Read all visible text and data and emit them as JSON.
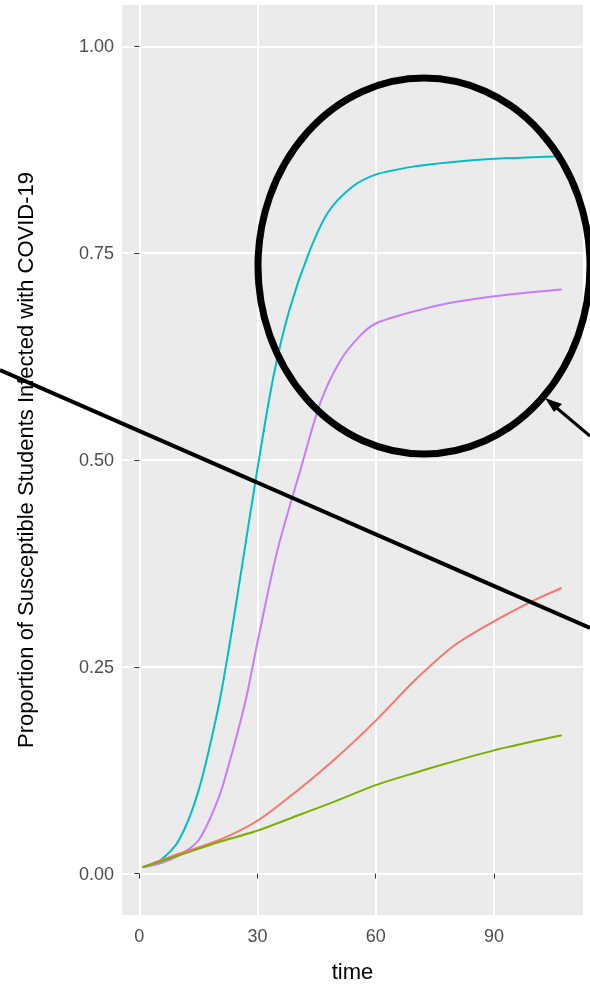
{
  "chart_data": {
    "type": "line",
    "xlabel": "time",
    "ylabel": "Proportion of Susceptible Students Infected with COVID-19",
    "xlim": [
      -4.4,
      112.6
    ],
    "ylim": [
      -0.05,
      1.05
    ],
    "xticks": [
      0,
      30,
      60,
      90
    ],
    "yticks": [
      {
        "value": 0,
        "label": "0.00"
      },
      {
        "value": 0.25,
        "label": "0.25"
      },
      {
        "value": 0.5,
        "label": "0.50"
      },
      {
        "value": 0.75,
        "label": "0.75"
      },
      {
        "value": 1,
        "label": "1.00"
      }
    ],
    "grid": true,
    "marker": "none",
    "line_style": "solid",
    "series": [
      {
        "color": "#00bfc4",
        "x": [
          1,
          5,
          10,
          15,
          20,
          23,
          26,
          30,
          34,
          38,
          43,
          48,
          54,
          60,
          70,
          79,
          90,
          100,
          107
        ],
        "values": [
          0.008,
          0.015,
          0.04,
          0.1,
          0.2,
          0.28,
          0.37,
          0.49,
          0.6,
          0.68,
          0.75,
          0.8,
          0.83,
          0.845,
          0.855,
          0.86,
          0.864,
          0.866,
          0.867
        ]
      },
      {
        "color": "#c77cff",
        "x": [
          1,
          5,
          10,
          15,
          20,
          23,
          27,
          30,
          35,
          41,
          46,
          51,
          56,
          60,
          70,
          79,
          90,
          100,
          107
        ],
        "values": [
          0.008,
          0.012,
          0.022,
          0.04,
          0.09,
          0.137,
          0.21,
          0.28,
          0.39,
          0.49,
          0.57,
          0.62,
          0.65,
          0.665,
          0.68,
          0.69,
          0.698,
          0.703,
          0.706
        ]
      },
      {
        "color": "#f8766d",
        "x": [
          1,
          10,
          20,
          30,
          40,
          50,
          60,
          70,
          80,
          90,
          100,
          107
        ],
        "values": [
          0.008,
          0.024,
          0.04,
          0.064,
          0.1,
          0.14,
          0.185,
          0.234,
          0.276,
          0.305,
          0.33,
          0.345
        ]
      },
      {
        "color": "#7cae00",
        "x": [
          1,
          10,
          20,
          30,
          40,
          50,
          60,
          70,
          80,
          90,
          100,
          107
        ],
        "values": [
          0.008,
          0.022,
          0.038,
          0.052,
          0.07,
          0.088,
          0.107,
          0.122,
          0.136,
          0.149,
          0.16,
          0.167
        ]
      }
    ]
  }
}
